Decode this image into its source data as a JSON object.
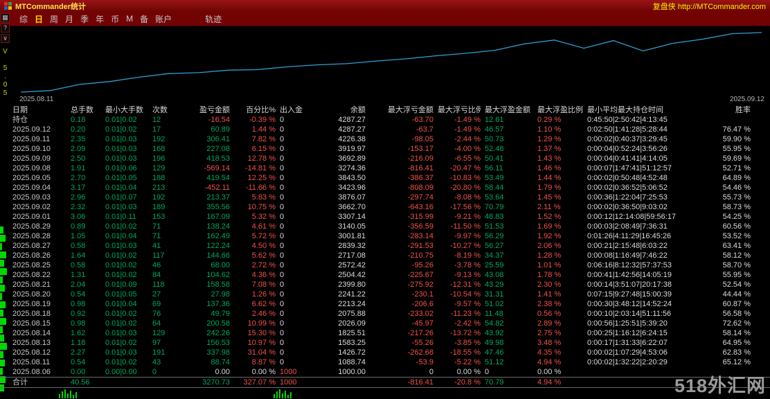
{
  "titlebar": {
    "title": "MTCommander统计",
    "right": "复盘侠 http://MTCommander.com"
  },
  "menubar": {
    "items": [
      {
        "label": "综"
      },
      {
        "label": "日",
        "active": true
      },
      {
        "label": "周"
      },
      {
        "label": "月"
      },
      {
        "label": "季"
      },
      {
        "label": "年"
      },
      {
        "label": "币"
      },
      {
        "label": "M"
      },
      {
        "label": "备"
      },
      {
        "label": "账户"
      },
      {
        "label": "轨迹",
        "gap": true
      }
    ]
  },
  "left_rail": {
    "version": "V 5.05"
  },
  "chart": {
    "label_left": "2025.08.11",
    "label_right": "2025.09.12"
  },
  "chart_data": {
    "type": "line",
    "title": "",
    "grid": false,
    "legend": "none",
    "line_color": "#2f9fd6",
    "background": "#000000",
    "ylim": [
      1000,
      4300
    ],
    "series": [
      {
        "name": "余额",
        "x": [
          "2025.08.06",
          "2025.08.11",
          "2025.08.12",
          "2025.08.13",
          "2025.08.14",
          "2025.08.15",
          "2025.08.18",
          "2025.08.19",
          "2025.08.20",
          "2025.08.21",
          "2025.08.22",
          "2025.08.25",
          "2025.08.26",
          "2025.08.27",
          "2025.08.28",
          "2025.08.29",
          "2025.09.01",
          "2025.09.02",
          "2025.09.03",
          "2025.09.04",
          "2025.09.05",
          "2025.09.08",
          "2025.09.09",
          "2025.09.10",
          "2025.09.11",
          "2025.09.12"
        ],
        "values": [
          1000.0,
          1088.74,
          1426.72,
          1583.25,
          1825.51,
          2026.09,
          2075.88,
          2213.24,
          2241.22,
          2399.8,
          2504.42,
          2572.42,
          2717.08,
          2839.32,
          3001.81,
          3140.05,
          3307.14,
          3662.7,
          3876.07,
          3423.96,
          3843.5,
          3274.36,
          3692.89,
          3919.97,
          4226.38,
          4287.27
        ]
      }
    ],
    "x_axis_labels_visible": [
      "2025.08.11",
      "2025.09.12"
    ]
  },
  "table": {
    "headers": [
      "日期",
      "总手数",
      "最小大手数",
      "次数",
      "盈亏金额",
      "百分比%",
      "出入金",
      "余额",
      "最大浮亏金额",
      "最大浮亏比例",
      "最大浮盈金额",
      "最大浮盈比例",
      "最小平均最大持仓时间",
      "胜率"
    ],
    "col_align": [
      "left",
      "left",
      "left",
      "left",
      "right",
      "right",
      "left",
      "right",
      "right",
      "right",
      "left",
      "left",
      "left",
      "right"
    ],
    "col_color": [
      "gray",
      "green",
      "green",
      "green",
      "sign",
      "red",
      "inout",
      "white",
      "neg",
      "neg",
      "greenz",
      "red",
      "white",
      "white"
    ],
    "rows": [
      [
        "持仓",
        "0.18",
        "0.01|0.02",
        "12",
        "-16.54",
        "-0.39 %",
        "0",
        "4287.27",
        "-63.70",
        "-1.49 %",
        "12.61",
        "0.29 %",
        "0:45:50|2:50:42|4:13:45",
        ""
      ],
      [
        "2025.09.12",
        "0.20",
        "0.01|0.02",
        "17",
        "60.89",
        "1.44 %",
        "0",
        "4287.27",
        "-63.7",
        "-1.49 %",
        "46.57",
        "1.10 %",
        "0:02:50|1:41:28|5:28:44",
        "76.47 %"
      ],
      [
        "2025.09.11",
        "2.35",
        "0.01|0.03",
        "192",
        "306.41",
        "7.82 %",
        "0",
        "4226.38",
        "-98.05",
        "-2.44 %",
        "50.73",
        "1.29 %",
        "0:00:02|0:40:37|3:29:45",
        "59.90 %"
      ],
      [
        "2025.09.10",
        "2.09",
        "0.01|0.03",
        "168",
        "227.08",
        "6.15 %",
        "0",
        "3919.97",
        "-153.17",
        "-4.00 %",
        "52.48",
        "1.37 %",
        "0:00:04|0:52:24|3:56:26",
        "55.95 %"
      ],
      [
        "2025.09.09",
        "2.50",
        "0.01|0.03",
        "196",
        "418.53",
        "12.78 %",
        "0",
        "3692.89",
        "-216.09",
        "-6.55 %",
        "50.41",
        "1.43 %",
        "0:00:04|0:41:41|4:14:05",
        "59.69 %"
      ],
      [
        "2025.09.08",
        "1.91",
        "0.01|0.06",
        "129",
        "-569.14",
        "-14.81 %",
        "0",
        "3274.36",
        "-816.41",
        "-20.47 %",
        "56.11",
        "1.46 %",
        "0:00:07|1:47:41|51:12:57",
        "52.71 %"
      ],
      [
        "2025.09.05",
        "2.70",
        "0.01|0.05",
        "188",
        "419.54",
        "12.25 %",
        "0",
        "3843.50",
        "-386.37",
        "-10.83 %",
        "53.49",
        "1.44 %",
        "0:00:02|0:50:48|4:52:48",
        "64.89 %"
      ],
      [
        "2025.09.04",
        "3.17",
        "0.01|0.04",
        "213",
        "-452.11",
        "-11.66 %",
        "0",
        "3423.96",
        "-808.09",
        "-20.80 %",
        "58.44",
        "1.79 %",
        "0:00:02|0:36:52|5:06:52",
        "54.46 %"
      ],
      [
        "2025.09.03",
        "2.96",
        "0.01|0.07",
        "192",
        "213.37",
        "5.83 %",
        "0",
        "3876.07",
        "-297.74",
        "-8.08 %",
        "53.64",
        "1.45 %",
        "0:00:36|1:22:04|7:25:53",
        "55.73 %"
      ],
      [
        "2025.09.02",
        "2.32",
        "0.01|0.03",
        "189",
        "355.56",
        "10.75 %",
        "0",
        "3662.70",
        "-643.16",
        "-17.56 %",
        "70.79",
        "2.11 %",
        "0:00:02|0:36:50|9:03:02",
        "58.73 %"
      ],
      [
        "2025.09.01",
        "3.06",
        "0.01|0.11",
        "153",
        "167.09",
        "5.32 %",
        "0",
        "3307.14",
        "-315.99",
        "-9.21 %",
        "48.83",
        "1.52 %",
        "0:00:12|12:14:08|59:56:17",
        "54.25 %"
      ],
      [
        "2025.08.29",
        "0.89",
        "0.01|0.02",
        "71",
        "138.24",
        "4.61 %",
        "0",
        "3140.05",
        "-356.59",
        "-11.50 %",
        "51.53",
        "1.69 %",
        "0:00:03|2:08:49|7:36:31",
        "60.56 %"
      ],
      [
        "2025.08.28",
        "1.05",
        "0.01|0.04",
        "71",
        "162.49",
        "5.72 %",
        "0",
        "3001.81",
        "-283.14",
        "-9.97 %",
        "56.29",
        "1.92 %",
        "0:01:26|4:11:29|16:45:26",
        "53.52 %"
      ],
      [
        "2025.08.27",
        "0.58",
        "0.01|0.03",
        "41",
        "122.24",
        "4.50 %",
        "0",
        "2839.32",
        "-291.53",
        "-10.27 %",
        "56.27",
        "2.06 %",
        "0:00:21|2:15:48|6:03:22",
        "63.41 %"
      ],
      [
        "2025.08.26",
        "1.64",
        "0.01|0.02",
        "117",
        "144.66",
        "5.62 %",
        "0",
        "2717.08",
        "-210.75",
        "-8.19 %",
        "34.37",
        "1.28 %",
        "0:00:08|1:16:49|7:46:22",
        "58.12 %"
      ],
      [
        "2025.08.25",
        "0.58",
        "0.01|0.02",
        "46",
        "68.00",
        "2.72 %",
        "0",
        "2572.42",
        "-95.26",
        "-3.78 %",
        "25.59",
        "1.01 %",
        "0:06:16|8:12:32|57:37:53",
        "58.70 %"
      ],
      [
        "2025.08.22",
        "1.31",
        "0.01|0.02",
        "84",
        "104.62",
        "4.36 %",
        "0",
        "2504.42",
        "-225.67",
        "-9.13 %",
        "43.08",
        "1.78 %",
        "0:00:41|1:42:56|14:05:19",
        "55.95 %"
      ],
      [
        "2025.08.21",
        "2.04",
        "0.01|0.09",
        "118",
        "158.58",
        "7.08 %",
        "0",
        "2399.80",
        "-275.92",
        "-12.31 %",
        "43.29",
        "2.30 %",
        "0:00:14|3:51:07|20:17:38",
        "52.54 %"
      ],
      [
        "2025.08.20",
        "0.54",
        "0.01|0.05",
        "27",
        "27.98",
        "1.26 %",
        "0",
        "2241.22",
        "-230.1",
        "-10.54 %",
        "31.31",
        "1.41 %",
        "0:07:15|9:27:48|15:00:39",
        "44.44 %"
      ],
      [
        "2025.08.19",
        "0.98",
        "0.01|0.04",
        "69",
        "137.36",
        "6.62 %",
        "0",
        "2213.24",
        "-206.6",
        "-9.57 %",
        "51.02",
        "2.38 %",
        "0:00:30|3:48:12|14:52:24",
        "60.87 %"
      ],
      [
        "2025.08.18",
        "0.92",
        "0.01|0.02",
        "76",
        "49.79",
        "2.46 %",
        "0",
        "2075.88",
        "-233.02",
        "-11.23 %",
        "11.48",
        "0.56 %",
        "0:00:10|2:03:14|51:11:56",
        "56.58 %"
      ],
      [
        "2025.08.15",
        "0.98",
        "0.01|0.02",
        "64",
        "200.58",
        "10.99 %",
        "0",
        "2026.09",
        "-45.97",
        "-2.42 %",
        "54.82",
        "2.89 %",
        "0:00:56|1:25:51|5:39:20",
        "72.62 %"
      ],
      [
        "2025.08.14",
        "1.62",
        "0.01|0.03",
        "129",
        "242.26",
        "15.30 %",
        "0",
        "1825.51",
        "-217.26",
        "-13.72 %",
        "43.92",
        "2.75 %",
        "0:00:25|1:16:12|6:24:15",
        "58.14 %"
      ],
      [
        "2025.08.13",
        "1.18",
        "0.01|0.02",
        "97",
        "156.53",
        "10.97 %",
        "0",
        "1583.25",
        "-55.26",
        "-3.85 %",
        "49.98",
        "3.48 %",
        "0:00:17|1:31:33|6:22:07",
        "64.95 %"
      ],
      [
        "2025.08.12",
        "2.27",
        "0.01|0.03",
        "191",
        "337.98",
        "31.04 %",
        "0",
        "1426.72",
        "-262.68",
        "-18.55 %",
        "47.46",
        "4.35 %",
        "0:00:02|1:07:29|4:53:06",
        "62.83 %"
      ],
      [
        "2025.08.11",
        "0.54",
        "0.01|0.02",
        "43",
        "88.74",
        "8.87 %",
        "0",
        "1088.74",
        "-53.9",
        "-5.22 %",
        "51.12",
        "4.94 %",
        "0:00:02|1:32:22|2:20:29",
        "65.12 %"
      ],
      [
        "2025.08.06",
        "0.00",
        "0.00|0.00",
        "0",
        "0.00",
        "0.00 %",
        "1000",
        "1000.00",
        "0",
        "0.00 %",
        "0",
        "0.00 %",
        "",
        ""
      ]
    ],
    "total": [
      "合计",
      "40.56",
      "",
      "",
      "3270.73",
      "327.07 %",
      "1000",
      "",
      "-816.41",
      "-20.8 %",
      "70.79",
      "4.94 %",
      "",
      ""
    ]
  },
  "watermark": "518外汇网",
  "colors": {
    "green": "#00a85a",
    "red": "#f25248",
    "accent_yellow": "#ffd800",
    "title_bg": "#730303",
    "chart_line": "#2f9fd6"
  }
}
